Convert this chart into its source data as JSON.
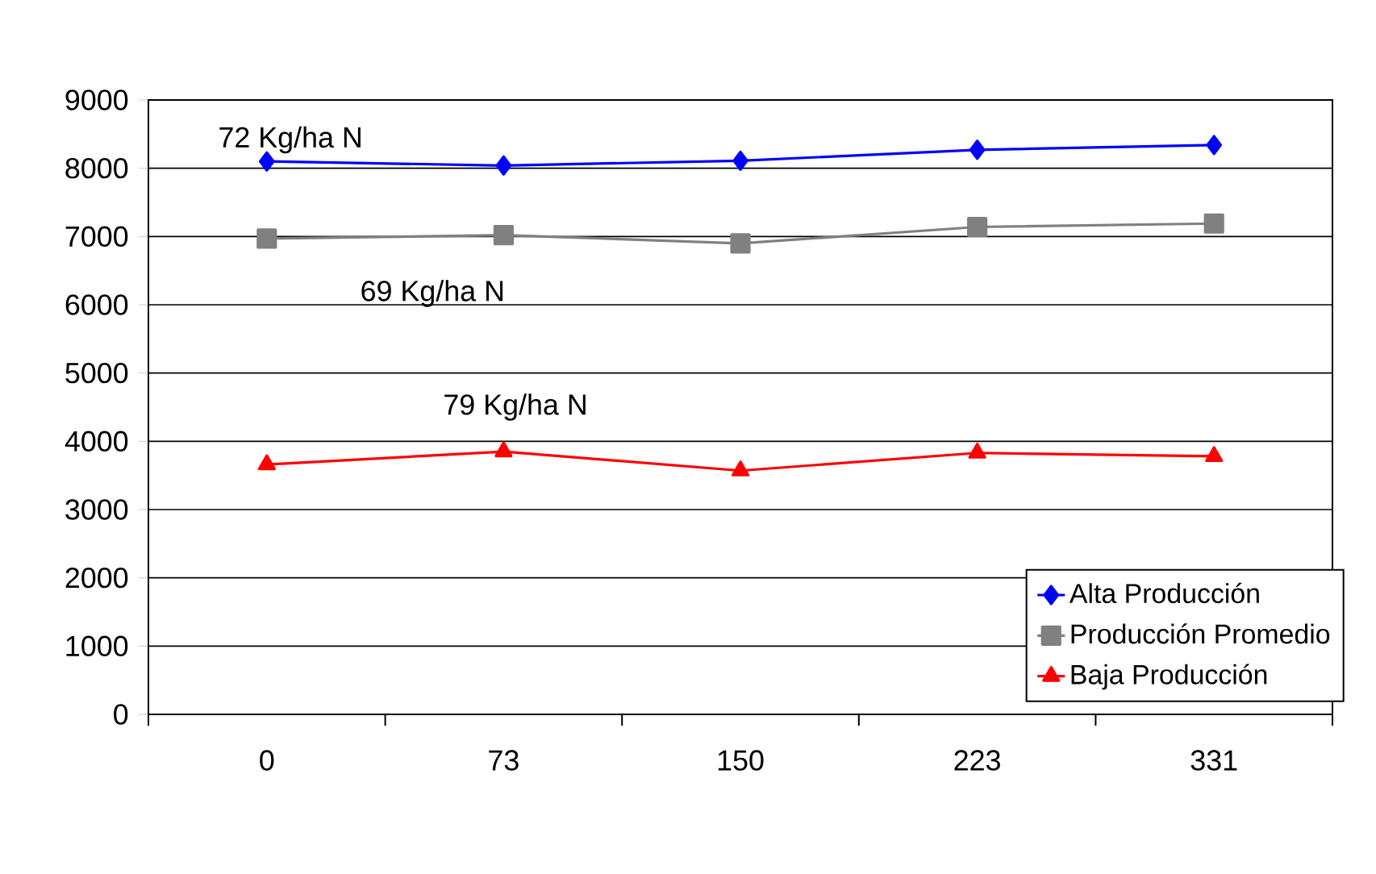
{
  "chart_data": {
    "type": "line",
    "categories": [
      "0",
      "73",
      "150",
      "223",
      "331"
    ],
    "series": [
      {
        "name": "Alta Producción",
        "color": "#0000ff",
        "marker": "diamond",
        "values": [
          8100,
          8040,
          8110,
          8270,
          8340
        ]
      },
      {
        "name": "Producción Promedio",
        "color": "#808080",
        "marker": "square",
        "values": [
          6970,
          7020,
          6900,
          7140,
          7190
        ]
      },
      {
        "name": "Baja Producción",
        "color": "#ff0000",
        "marker": "triangle",
        "values": [
          3660,
          3850,
          3570,
          3830,
          3780
        ]
      }
    ],
    "ylim": [
      0,
      9000
    ],
    "yticks": [
      0,
      1000,
      2000,
      3000,
      4000,
      5000,
      6000,
      7000,
      8000,
      9000
    ],
    "grid": "y",
    "legend": "bottom right",
    "line_style": "solid",
    "annotations": [
      "72 Kg/ha N",
      "69 Kg/ha N",
      "79 Kg/ha N"
    ]
  }
}
